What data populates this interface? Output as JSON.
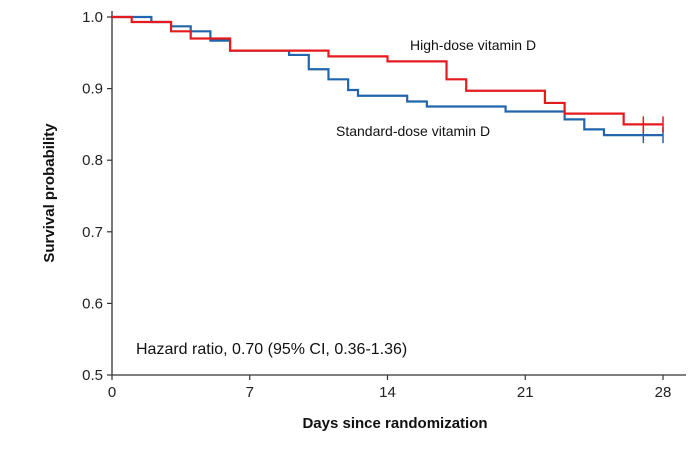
{
  "chart_data": {
    "type": "line",
    "subtype": "kaplan-meier step",
    "xlabel": "Days since randomization",
    "ylabel": "Survival probability",
    "xlim": [
      0,
      28.5
    ],
    "ylim": [
      0.5,
      1.0
    ],
    "x_ticks": [
      0,
      7,
      14,
      21,
      28
    ],
    "y_ticks": [
      0.5,
      0.6,
      0.7,
      0.8,
      0.9,
      1.0
    ],
    "x_tick_labels": [
      "0",
      "7",
      "14",
      "21",
      "28"
    ],
    "y_tick_labels": [
      "0.5",
      "0.6",
      "0.7",
      "0.8",
      "0.9",
      "1.0"
    ],
    "grid": false,
    "annotation": "Hazard ratio, 0.70 (95% CI, 0.36-1.36)",
    "series": [
      {
        "name": "High-dose vitamin D",
        "color": "#e41a1c",
        "steps": [
          {
            "x": 0,
            "y": 1.0
          },
          {
            "x": 1,
            "y": 0.993
          },
          {
            "x": 3,
            "y": 0.98
          },
          {
            "x": 4,
            "y": 0.97
          },
          {
            "x": 6,
            "y": 0.953
          },
          {
            "x": 11,
            "y": 0.945
          },
          {
            "x": 14,
            "y": 0.938
          },
          {
            "x": 17,
            "y": 0.913
          },
          {
            "x": 18,
            "y": 0.897
          },
          {
            "x": 22,
            "y": 0.88
          },
          {
            "x": 23,
            "y": 0.865
          },
          {
            "x": 26,
            "y": 0.85
          },
          {
            "x": 28,
            "y": 0.85
          }
        ],
        "censored_x": [
          27,
          28
        ]
      },
      {
        "name": "Standard-dose vitamin D",
        "color": "#2166ac",
        "steps": [
          {
            "x": 0,
            "y": 1.0
          },
          {
            "x": 2,
            "y": 0.993
          },
          {
            "x": 3,
            "y": 0.987
          },
          {
            "x": 4,
            "y": 0.98
          },
          {
            "x": 5,
            "y": 0.967
          },
          {
            "x": 6,
            "y": 0.953
          },
          {
            "x": 9,
            "y": 0.947
          },
          {
            "x": 10,
            "y": 0.927
          },
          {
            "x": 11,
            "y": 0.913
          },
          {
            "x": 12,
            "y": 0.898
          },
          {
            "x": 12.5,
            "y": 0.89
          },
          {
            "x": 15,
            "y": 0.882
          },
          {
            "x": 16,
            "y": 0.875
          },
          {
            "x": 20,
            "y": 0.868
          },
          {
            "x": 23,
            "y": 0.857
          },
          {
            "x": 24,
            "y": 0.843
          },
          {
            "x": 25,
            "y": 0.835
          },
          {
            "x": 28,
            "y": 0.835
          }
        ],
        "censored_x": [
          27,
          28
        ]
      }
    ]
  }
}
